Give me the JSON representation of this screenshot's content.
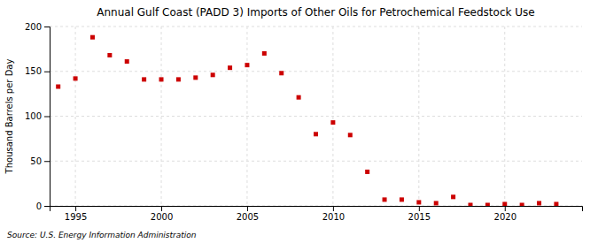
{
  "chart_data": {
    "type": "scatter",
    "title": "Annual Gulf Coast (PADD 3) Imports of Other Oils for Petrochemical Feedstock Use",
    "ylabel": "Thousand Barrels per Day",
    "source": "Source: U.S. Energy Information Administration",
    "x": [
      1994,
      1995,
      1996,
      1997,
      1998,
      1999,
      2000,
      2001,
      2002,
      2003,
      2004,
      2005,
      2006,
      2007,
      2008,
      2009,
      2010,
      2011,
      2012,
      2013,
      2014,
      2015,
      2016,
      2017,
      2018,
      2019,
      2020,
      2021,
      2022,
      2023
    ],
    "values": [
      133,
      142,
      188,
      168,
      161,
      141,
      141,
      141,
      143,
      146,
      154,
      157,
      170,
      148,
      121,
      80,
      93,
      79,
      38,
      7,
      7,
      4,
      3,
      10,
      1,
      1,
      2,
      1,
      3,
      2
    ],
    "color": "#cc0000",
    "marker": "square",
    "xlim": [
      1993.5,
      2024.5
    ],
    "ylim": [
      0,
      200
    ],
    "xticks": [
      1995,
      2000,
      2005,
      2010,
      2015,
      2020
    ],
    "yticks": [
      0,
      50,
      100,
      150,
      200
    ],
    "grid": true
  }
}
